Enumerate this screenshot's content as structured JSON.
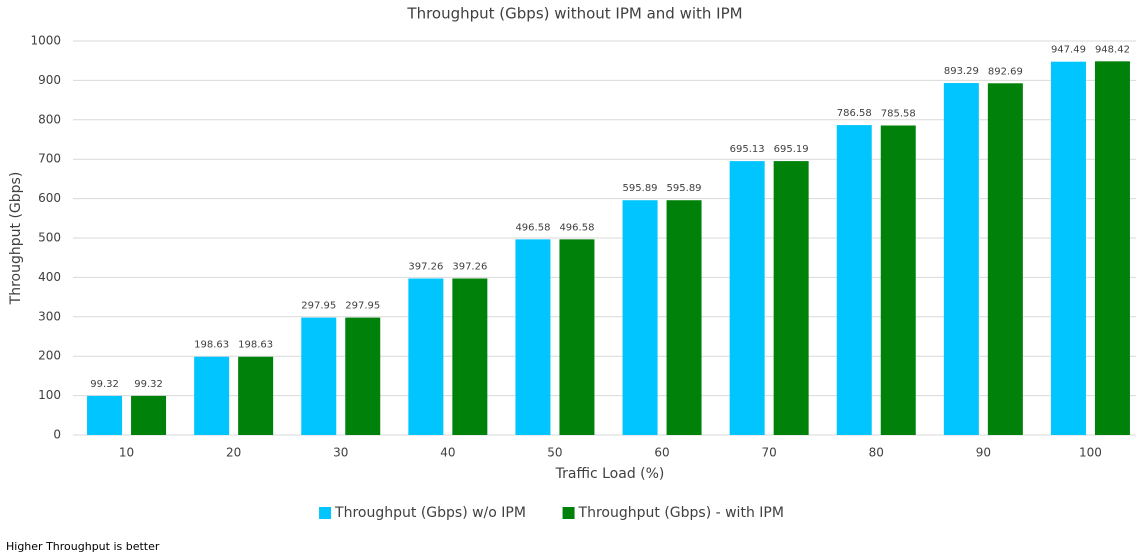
{
  "chart_data": {
    "type": "bar",
    "title": "Throughput (Gbps) without IPM and with IPM",
    "x_label": "Traffic Load (%)",
    "y_label": "Throughput (Gbps)",
    "categories": [
      "10",
      "20",
      "30",
      "40",
      "50",
      "60",
      "70",
      "80",
      "90",
      "100"
    ],
    "series": [
      {
        "name": "Throughput (Gbps) w/o IPM",
        "color": "#00c5ff",
        "values": [
          99.32,
          198.63,
          297.95,
          397.26,
          496.58,
          595.89,
          695.13,
          786.58,
          893.29,
          947.49
        ]
      },
      {
        "name": "Throughput (Gbps) - with IPM",
        "color": "#00820a",
        "values": [
          99.32,
          198.63,
          297.95,
          397.26,
          496.58,
          595.89,
          695.19,
          785.58,
          892.69,
          948.42
        ]
      }
    ],
    "ylim": [
      0,
      1000
    ],
    "yticks": [
      0,
      100,
      200,
      300,
      400,
      500,
      600,
      700,
      800,
      900,
      1000
    ],
    "grid": true,
    "legend": "bottom",
    "footnote": "Higher Throughput is better"
  }
}
